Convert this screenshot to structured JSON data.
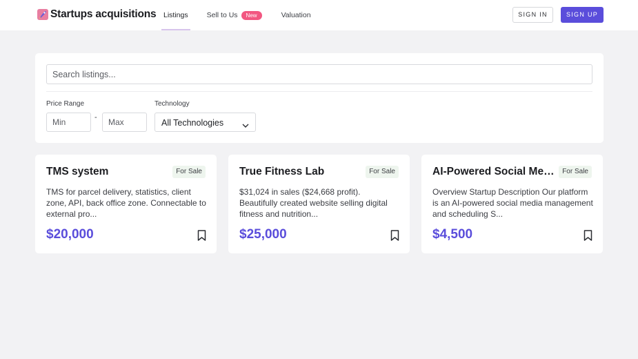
{
  "brand": {
    "emoji_icon": "rocket-icon",
    "name": "Startups acquisitions",
    "accent_color": "#5a4ddb"
  },
  "nav": {
    "listings": "Listings",
    "sell": "Sell to Us",
    "sell_badge": "New",
    "valuation": "Valuation"
  },
  "auth": {
    "sign_in": "SIGN IN",
    "sign_up": "SIGN UP"
  },
  "filters": {
    "search_placeholder": "Search listings...",
    "price_label": "Price Range",
    "min_placeholder": "Min",
    "max_placeholder": "Max",
    "range_separator": "-",
    "technology_label": "Technology",
    "technology_value": "All Technologies"
  },
  "listings": [
    {
      "title": "TMS system",
      "status": "For Sale",
      "description": "TMS for parcel delivery, statistics, client zone, API, back office zone. Connectable to external pro...",
      "price": "$20,000"
    },
    {
      "title": "True Fitness Lab",
      "status": "For Sale",
      "description": "$31,024 in sales ($24,668 profit). Beautifully created website selling digital fitness and nutrition...",
      "price": "$25,000"
    },
    {
      "title": "AI-Powered Social Media Management",
      "status": "For Sale",
      "description": "Overview Startup Description Our platform is an AI-powered social media management and scheduling S...",
      "price": "$4,500"
    }
  ]
}
